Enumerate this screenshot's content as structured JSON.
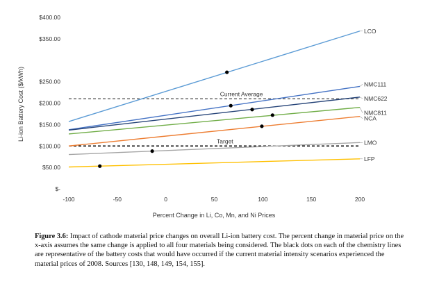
{
  "chart_data": {
    "type": "line",
    "xlabel": "Percent Change in Li, Co, Mn, and Ni Prices",
    "ylabel": "Li-ion Battery Cost ($/kWh)",
    "xlim": [
      -100,
      200
    ],
    "ylim": [
      0,
      400
    ],
    "x_ticks": [
      -100,
      -50,
      0,
      50,
      100,
      150,
      200
    ],
    "y_tick_labels": [
      "$-",
      "$50.00",
      "$100.00",
      "$150.00",
      "$200.00",
      "$250.00",
      "$350.00",
      "$400.00"
    ],
    "grid": false,
    "series": [
      {
        "name": "LCO",
        "color": "#5b9bd5",
        "x": [
          -100,
          200
        ],
        "y": [
          157,
          368
        ],
        "markers": [
          {
            "x": 63,
            "y": 272
          }
        ]
      },
      {
        "name": "NMC111",
        "color": "#4472c4",
        "x": [
          -100,
          200
        ],
        "y": [
          138,
          239
        ],
        "markers": [
          {
            "x": 67,
            "y": 194
          }
        ]
      },
      {
        "name": "NMC622",
        "color": "#264478",
        "x": [
          -100,
          200
        ],
        "y": [
          137,
          214
        ],
        "markers": [
          {
            "x": 89,
            "y": 185
          }
        ]
      },
      {
        "name": "NMC811",
        "color": "#70ad47",
        "x": [
          -100,
          200
        ],
        "y": [
          128,
          190
        ],
        "markers": [
          {
            "x": 110,
            "y": 172
          }
        ]
      },
      {
        "name": "NCA",
        "color": "#ed7d31",
        "x": [
          -100,
          200
        ],
        "y": [
          100,
          169
        ],
        "markers": [
          {
            "x": 99,
            "y": 146
          }
        ]
      },
      {
        "name": "LMO",
        "color": "#a5a5a5",
        "x": [
          -100,
          200
        ],
        "y": [
          80,
          108
        ],
        "markers": [
          {
            "x": -14,
            "y": 88
          }
        ]
      },
      {
        "name": "LFP",
        "color": "#ffc000",
        "x": [
          -100,
          200
        ],
        "y": [
          51,
          70
        ],
        "markers": [
          {
            "x": -68,
            "y": 53
          }
        ]
      }
    ],
    "reference_lines": [
      {
        "label": "Current Average",
        "y": 210,
        "color": "#555555",
        "style": "dashed"
      },
      {
        "label": "Target",
        "y": 100,
        "color": "#000000",
        "style": "dashed"
      }
    ]
  },
  "caption": {
    "label": "Figure 3.6:",
    "text": " Impact of cathode material price changes on overall Li-ion battery cost. The percent change in material price on the x-axis assumes the same change is applied to all four materials being considered. The black dots on each of the chemistry lines are representative of the battery costs that would have occurred if the current material intensity scenarios experienced the material prices of 2008. Sources [130, 148, 149, 154, 155]."
  }
}
